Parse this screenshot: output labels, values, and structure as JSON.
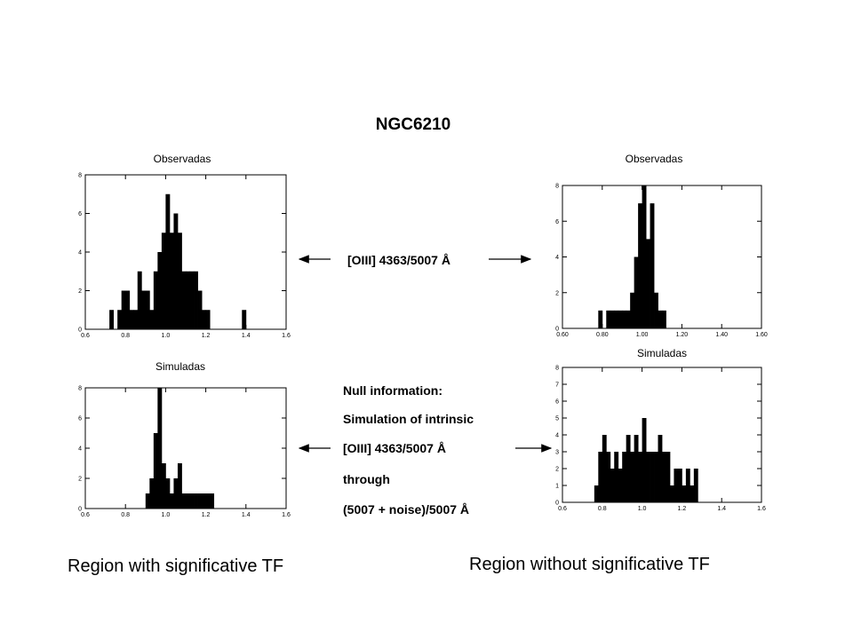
{
  "title": "NGC6210",
  "arrow_label": "[OIII] 4363/5007 Å",
  "null_info": [
    "Null information:",
    "Simulation of intrinsic",
    "[OIII] 4363/5007 Å",
    "through",
    "(5007 + noise)/5007 Å"
  ],
  "bottom_left": "Region with significative TF",
  "bottom_right": "Region without significative TF",
  "chart_data": [
    {
      "type": "bar",
      "title": "Observadas",
      "xlim": [
        0.6,
        1.6
      ],
      "ylim": [
        0,
        8
      ],
      "xticks": [
        "0.6",
        "0.8",
        "1.0",
        "1.2",
        "1.4",
        "1.6"
      ],
      "yticks": [
        "0",
        "2",
        "4",
        "6",
        "8"
      ],
      "bin_width": 0.02,
      "bins": [
        [
          0.72,
          1
        ],
        [
          0.76,
          1
        ],
        [
          0.78,
          2
        ],
        [
          0.8,
          2
        ],
        [
          0.82,
          1
        ],
        [
          0.84,
          1
        ],
        [
          0.86,
          3
        ],
        [
          0.88,
          2
        ],
        [
          0.9,
          2
        ],
        [
          0.92,
          1
        ],
        [
          0.94,
          3
        ],
        [
          0.96,
          4
        ],
        [
          0.98,
          5
        ],
        [
          1.0,
          7
        ],
        [
          1.02,
          5
        ],
        [
          1.04,
          6
        ],
        [
          1.06,
          5
        ],
        [
          1.08,
          3
        ],
        [
          1.1,
          3
        ],
        [
          1.12,
          3
        ],
        [
          1.14,
          3
        ],
        [
          1.16,
          2
        ],
        [
          1.18,
          1
        ],
        [
          1.2,
          1
        ],
        [
          1.38,
          1
        ]
      ]
    },
    {
      "type": "bar",
      "title": "Observadas",
      "xlim": [
        0.6,
        1.6
      ],
      "ylim": [
        0,
        8
      ],
      "xticks": [
        "0.60",
        "0.80",
        "1.00",
        "1.20",
        "1.40",
        "1.60"
      ],
      "yticks": [
        "0",
        "2",
        "4",
        "6",
        "8"
      ],
      "bin_width": 0.02,
      "bins": [
        [
          0.78,
          1
        ],
        [
          0.82,
          1
        ],
        [
          0.84,
          1
        ],
        [
          0.86,
          1
        ],
        [
          0.88,
          1
        ],
        [
          0.9,
          1
        ],
        [
          0.92,
          1
        ],
        [
          0.94,
          2
        ],
        [
          0.96,
          4
        ],
        [
          0.98,
          7
        ],
        [
          1.0,
          8
        ],
        [
          1.02,
          5
        ],
        [
          1.04,
          7
        ],
        [
          1.06,
          2
        ],
        [
          1.08,
          1
        ],
        [
          1.1,
          1
        ]
      ]
    },
    {
      "type": "bar",
      "title": "Simuladas",
      "xlim": [
        0.6,
        1.6
      ],
      "ylim": [
        0,
        8
      ],
      "xticks": [
        "0.6",
        "0.8",
        "1.0",
        "1.2",
        "1.4",
        "1.6"
      ],
      "yticks": [
        "0",
        "2",
        "4",
        "6",
        "8"
      ],
      "bin_width": 0.02,
      "bins": [
        [
          0.9,
          1
        ],
        [
          0.92,
          2
        ],
        [
          0.94,
          5
        ],
        [
          0.96,
          8
        ],
        [
          0.98,
          3
        ],
        [
          1.0,
          2
        ],
        [
          1.02,
          1
        ],
        [
          1.04,
          2
        ],
        [
          1.06,
          3
        ],
        [
          1.08,
          1
        ],
        [
          1.1,
          1
        ],
        [
          1.12,
          1
        ],
        [
          1.14,
          1
        ],
        [
          1.16,
          1
        ],
        [
          1.18,
          1
        ],
        [
          1.2,
          1
        ],
        [
          1.22,
          1
        ]
      ]
    },
    {
      "type": "bar",
      "title": "Simuladas",
      "xlim": [
        0.6,
        1.6
      ],
      "ylim": [
        0,
        8
      ],
      "xticks": [
        "0.6",
        "0.8",
        "1.0",
        "1.2",
        "1.4",
        "1.6"
      ],
      "yticks": [
        "0",
        "1",
        "2",
        "3",
        "4",
        "5",
        "6",
        "7",
        "8"
      ],
      "bin_width": 0.02,
      "bins": [
        [
          0.76,
          1
        ],
        [
          0.78,
          3
        ],
        [
          0.8,
          4
        ],
        [
          0.82,
          3
        ],
        [
          0.84,
          2
        ],
        [
          0.86,
          3
        ],
        [
          0.88,
          2
        ],
        [
          0.9,
          3
        ],
        [
          0.92,
          4
        ],
        [
          0.94,
          3
        ],
        [
          0.96,
          4
        ],
        [
          0.98,
          3
        ],
        [
          1.0,
          5
        ],
        [
          1.02,
          3
        ],
        [
          1.04,
          3
        ],
        [
          1.06,
          3
        ],
        [
          1.08,
          4
        ],
        [
          1.1,
          3
        ],
        [
          1.12,
          3
        ],
        [
          1.14,
          1
        ],
        [
          1.16,
          2
        ],
        [
          1.18,
          2
        ],
        [
          1.2,
          1
        ],
        [
          1.22,
          2
        ],
        [
          1.24,
          1
        ],
        [
          1.26,
          2
        ]
      ]
    }
  ]
}
